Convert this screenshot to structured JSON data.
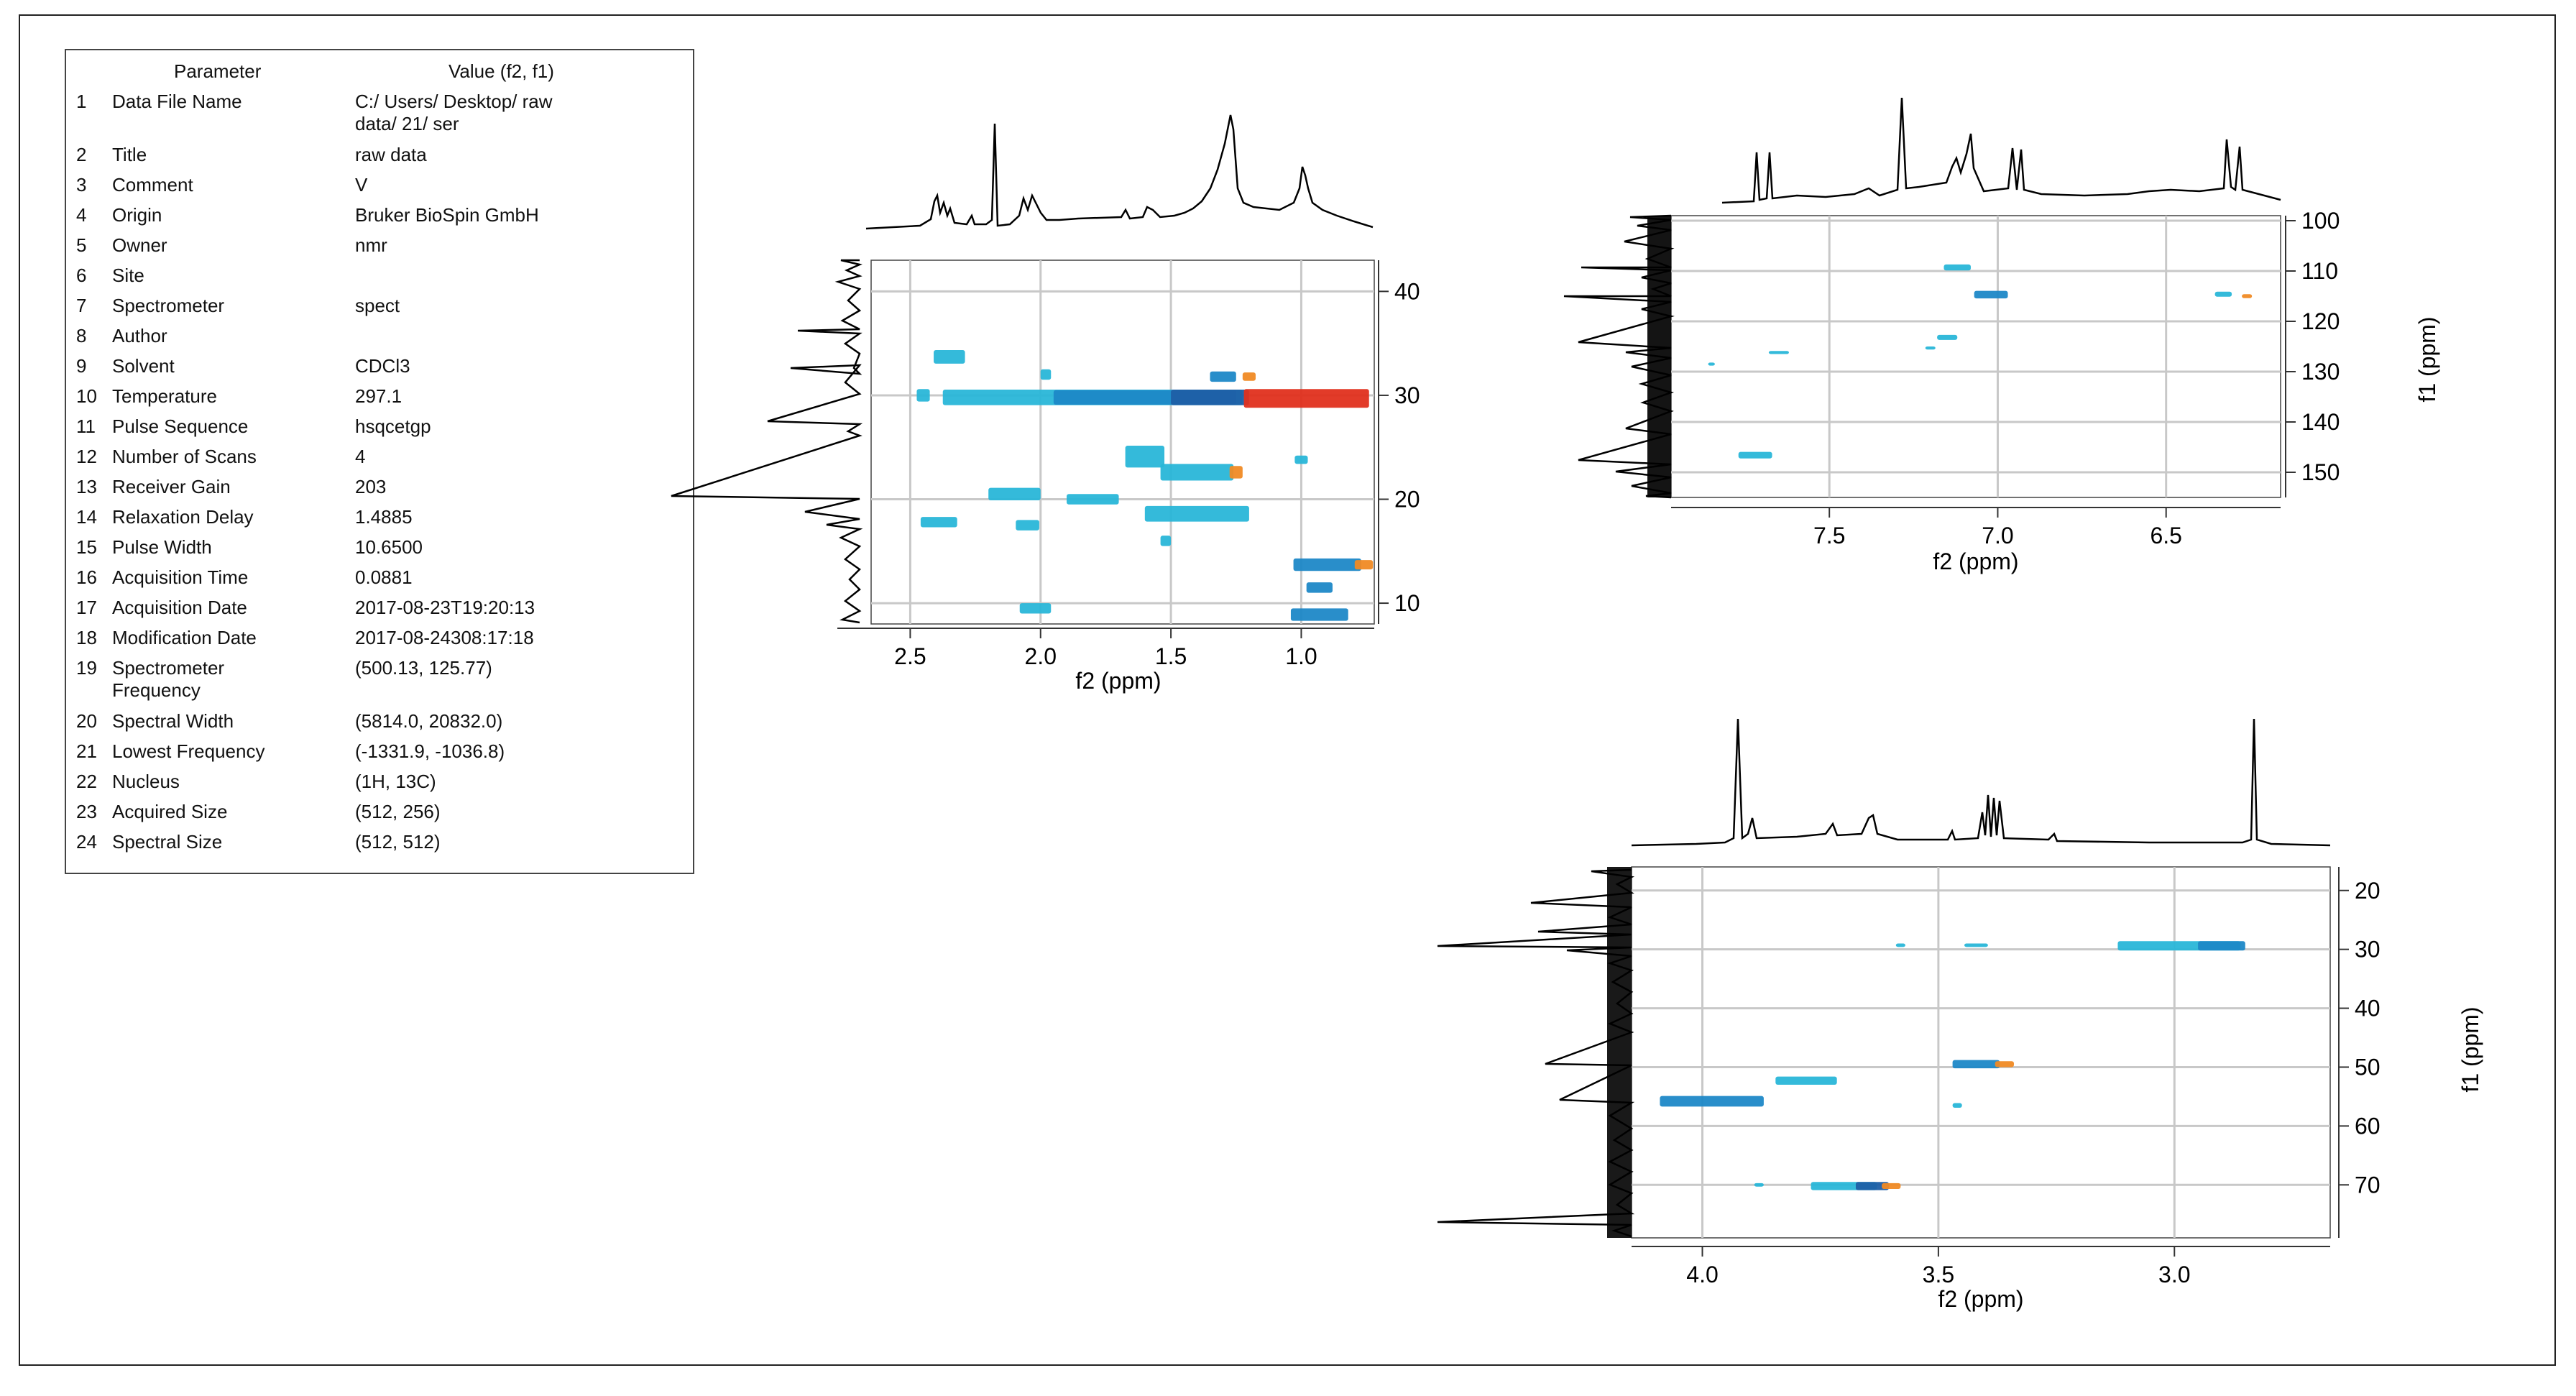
{
  "parameter_table": {
    "header": {
      "parameter": "Parameter",
      "value": "Value (f2, f1)"
    },
    "rows": [
      {
        "num": "1",
        "name": "Data File Name",
        "value": "C:/ Users/ Desktop/ raw\ndata/ 21/ ser"
      },
      {
        "num": "2",
        "name": "Title",
        "value": " raw data"
      },
      {
        "num": "3",
        "name": "Comment",
        "value": "V"
      },
      {
        "num": "4",
        "name": "Origin",
        "value": "Bruker BioSpin GmbH"
      },
      {
        "num": "5",
        "name": "Owner",
        "value": "nmr"
      },
      {
        "num": "6",
        "name": "Site",
        "value": ""
      },
      {
        "num": "7",
        "name": "Spectrometer",
        "value": "spect"
      },
      {
        "num": "8",
        "name": "Author",
        "value": ""
      },
      {
        "num": "9",
        "name": "Solvent",
        "value": "CDCl3"
      },
      {
        "num": "10",
        "name": "Temperature",
        "value": "297.1"
      },
      {
        "num": "11",
        "name": "Pulse Sequence",
        "value": "hsqcetgp"
      },
      {
        "num": "12",
        "name": "Number of Scans",
        "value": "4"
      },
      {
        "num": "13",
        "name": "Receiver Gain",
        "value": "203"
      },
      {
        "num": "14",
        "name": "Relaxation Delay",
        "value": "1.4885"
      },
      {
        "num": "15",
        "name": "Pulse Width",
        "value": "10.6500"
      },
      {
        "num": "16",
        "name": "Acquisition Time",
        "value": "0.0881"
      },
      {
        "num": "17",
        "name": "Acquisition Date",
        "value": "2017-08-23T19:20:13"
      },
      {
        "num": "18",
        "name": "Modification Date",
        "value": "2017-08-24308:17:18"
      },
      {
        "num": "19",
        "name": "Spectrometer\nFrequency",
        "value": "(500.13, 125.77)"
      },
      {
        "num": "20",
        "name": "Spectral Width",
        "value": "(5814.0, 20832.0)"
      },
      {
        "num": "21",
        "name": "Lowest Frequency",
        "value": "(-1331.9, -1036.8)"
      },
      {
        "num": "22",
        "name": "Nucleus",
        "value": "(1H, 13C)"
      },
      {
        "num": "23",
        "name": "Acquired Size",
        "value": "(512, 256)"
      },
      {
        "num": "24",
        "name": "Spectral Size",
        "value": "(512, 512)"
      }
    ]
  },
  "colors": {
    "cross_peak_light": "#29b6d8",
    "cross_peak_dark": "#1f5fa6",
    "cross_peak_hot": "#e0301e",
    "cross_peak_orange": "#f08a24",
    "grid": "#c8c8c8",
    "trace": "#000000"
  },
  "chart_data": [
    {
      "type": "heatmap",
      "subtype": "2D HSQC NMR",
      "title": "",
      "xlabel": "f2 (ppm)",
      "ylabel": "",
      "xlim": [
        2.65,
        0.72
      ],
      "ylim": [
        43,
        8
      ],
      "xticks": [
        2.5,
        2.0,
        1.5,
        1.0
      ],
      "xtick_labels": [
        "2.5",
        "2.0",
        "1.5",
        "1.0"
      ],
      "yticks": [
        10,
        20,
        30,
        40
      ],
      "ytick_labels": [
        "10",
        "20",
        "30",
        "40"
      ],
      "peaks": [
        {
          "x": 2.02,
          "y": 9.5,
          "w": 0.12,
          "h": 1.0,
          "tone": "light"
        },
        {
          "x": 0.93,
          "y": 8.9,
          "w": 0.22,
          "h": 1.2,
          "tone": "mid"
        },
        {
          "x": 0.93,
          "y": 11.5,
          "w": 0.1,
          "h": 1.0,
          "tone": "mid"
        },
        {
          "x": 0.9,
          "y": 13.7,
          "w": 0.26,
          "h": 1.2,
          "tone": "mid"
        },
        {
          "x": 0.76,
          "y": 13.7,
          "w": 0.07,
          "h": 0.9,
          "tone": "orange"
        },
        {
          "x": 2.39,
          "y": 17.8,
          "w": 0.14,
          "h": 1.0,
          "tone": "light"
        },
        {
          "x": 2.05,
          "y": 17.5,
          "w": 0.09,
          "h": 1.0,
          "tone": "light"
        },
        {
          "x": 1.52,
          "y": 16.0,
          "w": 0.04,
          "h": 1.0,
          "tone": "light"
        },
        {
          "x": 1.4,
          "y": 18.6,
          "w": 0.4,
          "h": 1.5,
          "tone": "light"
        },
        {
          "x": 2.1,
          "y": 20.5,
          "w": 0.2,
          "h": 1.2,
          "tone": "light"
        },
        {
          "x": 1.8,
          "y": 20.0,
          "w": 0.2,
          "h": 1.0,
          "tone": "light"
        },
        {
          "x": 1.6,
          "y": 24.1,
          "w": 0.15,
          "h": 2.1,
          "tone": "light"
        },
        {
          "x": 1.4,
          "y": 22.6,
          "w": 0.28,
          "h": 1.6,
          "tone": "light"
        },
        {
          "x": 1.25,
          "y": 22.6,
          "w": 0.05,
          "h": 1.2,
          "tone": "orange"
        },
        {
          "x": 1.0,
          "y": 23.8,
          "w": 0.05,
          "h": 0.8,
          "tone": "light"
        },
        {
          "x": 1.8,
          "y": 29.8,
          "w": 1.15,
          "h": 1.5,
          "tone": "light"
        },
        {
          "x": 1.6,
          "y": 29.8,
          "w": 0.7,
          "h": 1.4,
          "tone": "mid"
        },
        {
          "x": 1.35,
          "y": 29.8,
          "w": 0.3,
          "h": 1.5,
          "tone": "dark"
        },
        {
          "x": 0.98,
          "y": 29.7,
          "w": 0.48,
          "h": 1.8,
          "tone": "hot"
        },
        {
          "x": 2.45,
          "y": 30.0,
          "w": 0.05,
          "h": 1.2,
          "tone": "light"
        },
        {
          "x": 2.35,
          "y": 33.7,
          "w": 0.12,
          "h": 1.3,
          "tone": "light"
        },
        {
          "x": 1.98,
          "y": 32.0,
          "w": 0.04,
          "h": 1.0,
          "tone": "light"
        },
        {
          "x": 1.3,
          "y": 31.8,
          "w": 0.1,
          "h": 1.0,
          "tone": "mid"
        },
        {
          "x": 1.2,
          "y": 31.8,
          "w": 0.05,
          "h": 0.8,
          "tone": "orange"
        }
      ]
    },
    {
      "type": "heatmap",
      "subtype": "2D HSQC NMR",
      "title": "",
      "xlabel": "f2 (ppm)",
      "ylabel": "f1 (ppm)",
      "xlim": [
        7.97,
        6.16
      ],
      "ylim": [
        99,
        155
      ],
      "xticks": [
        7.5,
        7.0,
        6.5
      ],
      "xtick_labels": [
        "7.5",
        "7.0",
        "6.5"
      ],
      "yticks": [
        100,
        110,
        120,
        130,
        140,
        150
      ],
      "ytick_labels": [
        "100",
        "110",
        "120",
        "130",
        "140",
        "150"
      ],
      "peaks": [
        {
          "x": 7.12,
          "y": 109.3,
          "w": 0.08,
          "h": 1.2,
          "tone": "light"
        },
        {
          "x": 7.02,
          "y": 114.7,
          "w": 0.1,
          "h": 1.5,
          "tone": "mid"
        },
        {
          "x": 6.33,
          "y": 114.6,
          "w": 0.05,
          "h": 1.0,
          "tone": "light"
        },
        {
          "x": 7.15,
          "y": 123.2,
          "w": 0.06,
          "h": 1.0,
          "tone": "light"
        },
        {
          "x": 7.72,
          "y": 146.6,
          "w": 0.1,
          "h": 1.3,
          "tone": "light"
        },
        {
          "x": 7.85,
          "y": 128.5,
          "w": 0.02,
          "h": 0.6,
          "tone": "light"
        },
        {
          "x": 7.65,
          "y": 126.2,
          "w": 0.06,
          "h": 0.6,
          "tone": "light"
        },
        {
          "x": 7.2,
          "y": 125.3,
          "w": 0.03,
          "h": 0.6,
          "tone": "light"
        },
        {
          "x": 6.26,
          "y": 115.0,
          "w": 0.03,
          "h": 0.8,
          "tone": "orange"
        }
      ]
    },
    {
      "type": "heatmap",
      "subtype": "2D HSQC NMR",
      "title": "",
      "xlabel": "f2 (ppm)",
      "ylabel": "f1 (ppm)",
      "xlim": [
        4.15,
        2.67
      ],
      "ylim": [
        16,
        79
      ],
      "xticks": [
        4.0,
        3.5,
        3.0
      ],
      "xtick_labels": [
        "4.0",
        "3.5",
        "3.0"
      ],
      "yticks": [
        20,
        30,
        40,
        50,
        60,
        70
      ],
      "ytick_labels": [
        "20",
        "30",
        "40",
        "50",
        "60",
        "70"
      ],
      "peaks": [
        {
          "x": 2.99,
          "y": 29.4,
          "w": 0.26,
          "h": 1.6,
          "tone": "light"
        },
        {
          "x": 2.9,
          "y": 29.4,
          "w": 0.1,
          "h": 1.6,
          "tone": "mid"
        },
        {
          "x": 3.42,
          "y": 29.3,
          "w": 0.05,
          "h": 0.6,
          "tone": "light"
        },
        {
          "x": 3.58,
          "y": 29.3,
          "w": 0.02,
          "h": 0.6,
          "tone": "light"
        },
        {
          "x": 3.78,
          "y": 52.3,
          "w": 0.13,
          "h": 1.4,
          "tone": "light"
        },
        {
          "x": 3.42,
          "y": 49.5,
          "w": 0.1,
          "h": 1.4,
          "tone": "mid"
        },
        {
          "x": 3.36,
          "y": 49.5,
          "w": 0.04,
          "h": 1.0,
          "tone": "orange"
        },
        {
          "x": 3.98,
          "y": 55.8,
          "w": 0.22,
          "h": 1.8,
          "tone": "mid"
        },
        {
          "x": 3.46,
          "y": 56.5,
          "w": 0.02,
          "h": 0.8,
          "tone": "light"
        },
        {
          "x": 3.7,
          "y": 70.2,
          "w": 0.14,
          "h": 1.4,
          "tone": "light"
        },
        {
          "x": 3.64,
          "y": 70.2,
          "w": 0.07,
          "h": 1.4,
          "tone": "dark"
        },
        {
          "x": 3.88,
          "y": 70.0,
          "w": 0.02,
          "h": 0.6,
          "tone": "light"
        },
        {
          "x": 3.6,
          "y": 70.2,
          "w": 0.04,
          "h": 1.0,
          "tone": "orange"
        }
      ]
    }
  ]
}
